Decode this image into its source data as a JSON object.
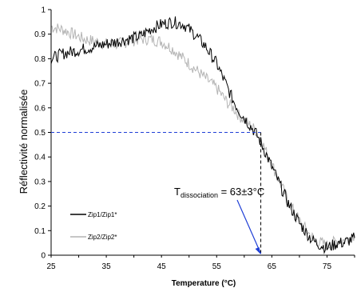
{
  "chart_data": {
    "type": "line",
    "xlabel": "Temperature (°C)",
    "ylabel": "Réflectivité normalisée",
    "xlim": [
      25,
      80
    ],
    "ylim": [
      0,
      1
    ],
    "x_ticks": [
      25,
      35,
      45,
      55,
      65,
      75
    ],
    "y_ticks": [
      0,
      0.1,
      0.2,
      0.3,
      0.4,
      0.5,
      0.6,
      0.7,
      0.8,
      0.9,
      1
    ],
    "legend_position": "bottom-left",
    "series": [
      {
        "name": "Zip1/Zip1*",
        "color": "#000000",
        "x": [
          25,
          27,
          29,
          31,
          33,
          35,
          37,
          39,
          41,
          43,
          45,
          47,
          49,
          51,
          53,
          55,
          56,
          57,
          58,
          59,
          60,
          61,
          62,
          63,
          64,
          65,
          66,
          67,
          68,
          69,
          70,
          71,
          72,
          73,
          74,
          75,
          76,
          77,
          78,
          79,
          80
        ],
        "values": [
          0.8,
          0.82,
          0.83,
          0.84,
          0.85,
          0.86,
          0.87,
          0.88,
          0.89,
          0.92,
          0.94,
          0.95,
          0.94,
          0.9,
          0.85,
          0.78,
          0.73,
          0.68,
          0.63,
          0.59,
          0.56,
          0.53,
          0.5,
          0.46,
          0.41,
          0.36,
          0.31,
          0.26,
          0.21,
          0.17,
          0.13,
          0.1,
          0.07,
          0.05,
          0.04,
          0.03,
          0.04,
          0.05,
          0.05,
          0.06,
          0.07
        ]
      },
      {
        "name": "Zip2/Zip2*",
        "color": "#b4b4b4",
        "x": [
          25,
          27,
          29,
          31,
          33,
          35,
          37,
          39,
          41,
          43,
          45,
          47,
          49,
          51,
          53,
          55,
          56,
          57,
          58,
          59,
          60,
          61,
          62,
          63,
          64,
          65,
          66,
          67,
          68,
          69,
          70,
          71,
          72,
          73,
          74,
          75,
          76,
          77,
          78,
          79,
          80
        ],
        "values": [
          0.93,
          0.92,
          0.9,
          0.88,
          0.87,
          0.86,
          0.86,
          0.87,
          0.88,
          0.88,
          0.87,
          0.84,
          0.8,
          0.76,
          0.72,
          0.68,
          0.65,
          0.62,
          0.6,
          0.57,
          0.55,
          0.53,
          0.51,
          0.47,
          0.42,
          0.37,
          0.32,
          0.27,
          0.22,
          0.18,
          0.14,
          0.11,
          0.08,
          0.06,
          0.05,
          0.04,
          0.05,
          0.06,
          0.06,
          0.07,
          0.08
        ]
      }
    ],
    "annotation": {
      "text_main": "T",
      "text_sub": "dissociation",
      "text_tail": " = 63±3°C",
      "x": 63,
      "y": 0.5,
      "line_color": "#1f3fd6"
    }
  }
}
